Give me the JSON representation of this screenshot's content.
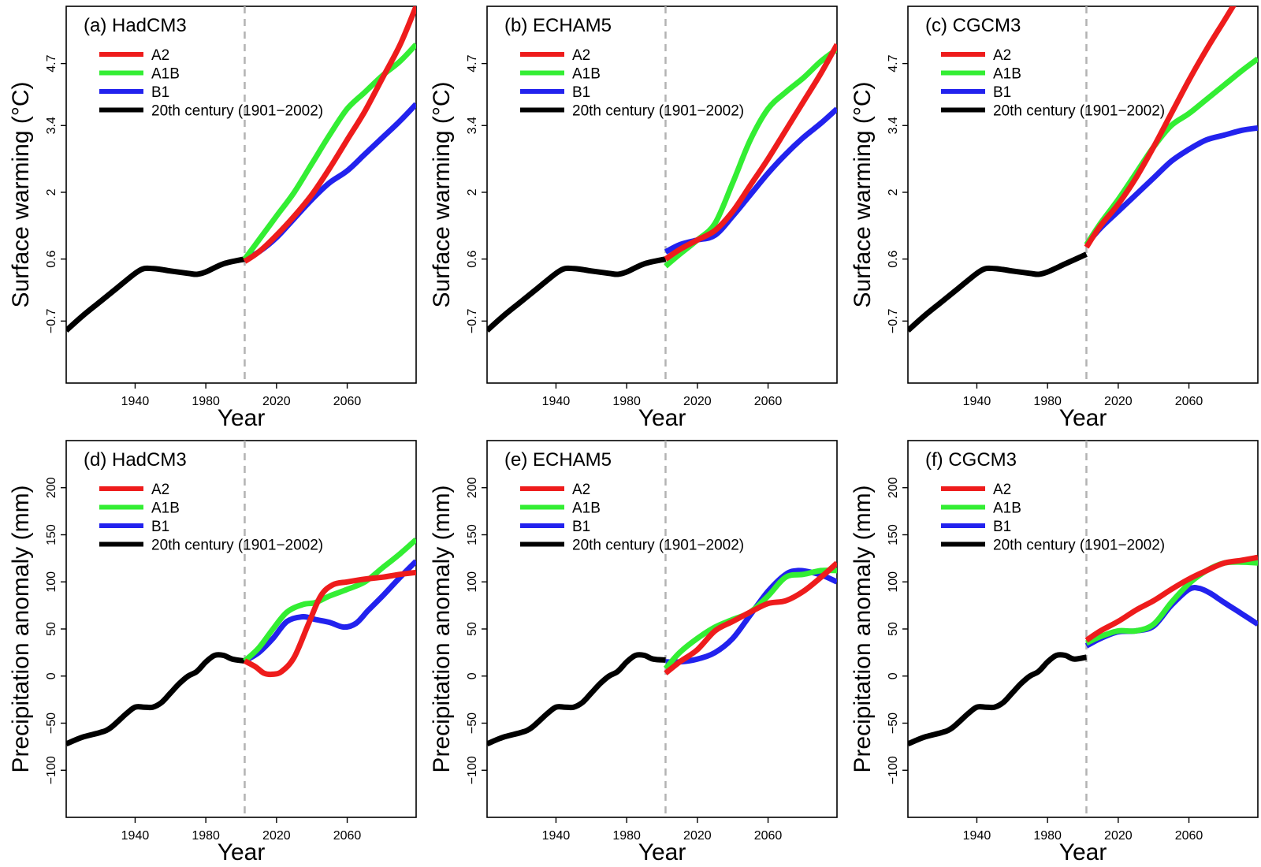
{
  "colors": {
    "A2": "#ee1c1c",
    "A1B": "#33ee33",
    "B1": "#2222ee",
    "20th": "#000000",
    "divider": "#b3b3b3"
  },
  "chart_data": [
    {
      "type": "line",
      "title": "(a) HadCM3",
      "xlabel": "Year",
      "ylabel": "Surface warming  (°C)",
      "xlim": [
        1901,
        2099
      ],
      "ylim": [
        -2.0,
        5.9
      ],
      "xticks": [
        1940,
        1980,
        2020,
        2060
      ],
      "yticks": [
        -0.7,
        0.6,
        2,
        3.4,
        4.7
      ],
      "ytick_labels": [
        "−0.7",
        "0.6",
        "2",
        "3.4",
        "4.7"
      ],
      "divider_year": 2002,
      "legend": [
        "A2",
        "A1B",
        "B1",
        "20th century (1901−2002)"
      ],
      "legend_position": "top-left",
      "series": [
        {
          "name": "20th century (1901−2002)",
          "key": "20th",
          "x": [
            1901,
            1910,
            1920,
            1930,
            1940,
            1945,
            1950,
            1955,
            1960,
            1970,
            1975,
            1980,
            1990,
            2002
          ],
          "y": [
            -0.9,
            -0.6,
            -0.3,
            0.0,
            0.3,
            0.4,
            0.4,
            0.38,
            0.35,
            0.3,
            0.28,
            0.33,
            0.5,
            0.6
          ]
        },
        {
          "name": "A2",
          "key": "A2",
          "x": [
            2002,
            2010,
            2020,
            2030,
            2040,
            2050,
            2060,
            2070,
            2080,
            2090,
            2099
          ],
          "y": [
            0.55,
            0.75,
            1.1,
            1.5,
            1.95,
            2.5,
            3.1,
            3.7,
            4.4,
            5.1,
            5.9
          ]
        },
        {
          "name": "A1B",
          "key": "A1B",
          "x": [
            2002,
            2010,
            2020,
            2030,
            2040,
            2050,
            2060,
            2070,
            2080,
            2090,
            2099
          ],
          "y": [
            0.6,
            1.0,
            1.5,
            2.0,
            2.6,
            3.2,
            3.75,
            4.1,
            4.45,
            4.75,
            5.1
          ]
        },
        {
          "name": "B1",
          "key": "B1",
          "x": [
            2002,
            2010,
            2020,
            2030,
            2040,
            2050,
            2060,
            2070,
            2080,
            2090,
            2099
          ],
          "y": [
            0.6,
            0.75,
            1.05,
            1.45,
            1.85,
            2.2,
            2.45,
            2.8,
            3.15,
            3.5,
            3.85
          ]
        }
      ]
    },
    {
      "type": "line",
      "title": "(b) ECHAM5",
      "xlabel": "Year",
      "ylabel": "Surface warming  (°C)",
      "xlim": [
        1901,
        2099
      ],
      "ylim": [
        -2.0,
        5.9
      ],
      "xticks": [
        1940,
        1980,
        2020,
        2060
      ],
      "yticks": [
        -0.7,
        0.6,
        2,
        3.4,
        4.7
      ],
      "ytick_labels": [
        "−0.7",
        "0.6",
        "2",
        "3.4",
        "4.7"
      ],
      "divider_year": 2002,
      "legend": [
        "A2",
        "A1B",
        "B1",
        "20th century (1901−2002)"
      ],
      "legend_position": "top-left",
      "series": [
        {
          "name": "20th century (1901−2002)",
          "key": "20th",
          "x": [
            1901,
            1910,
            1920,
            1930,
            1940,
            1945,
            1950,
            1955,
            1960,
            1970,
            1975,
            1980,
            1990,
            2002
          ],
          "y": [
            -0.9,
            -0.6,
            -0.3,
            0.0,
            0.3,
            0.4,
            0.4,
            0.38,
            0.35,
            0.3,
            0.28,
            0.33,
            0.5,
            0.6
          ]
        },
        {
          "name": "A2",
          "key": "A2",
          "x": [
            2002,
            2010,
            2020,
            2030,
            2040,
            2050,
            2060,
            2070,
            2080,
            2090,
            2099
          ],
          "y": [
            0.6,
            0.8,
            1.0,
            1.2,
            1.6,
            2.15,
            2.7,
            3.3,
            3.9,
            4.5,
            5.1
          ]
        },
        {
          "name": "A1B",
          "key": "A1B",
          "x": [
            2002,
            2010,
            2020,
            2030,
            2040,
            2050,
            2060,
            2070,
            2080,
            2090,
            2099
          ],
          "y": [
            0.45,
            0.7,
            1.0,
            1.35,
            2.2,
            3.1,
            3.75,
            4.1,
            4.4,
            4.75,
            5.0
          ]
        },
        {
          "name": "B1",
          "key": "B1",
          "x": [
            2002,
            2010,
            2020,
            2030,
            2040,
            2050,
            2060,
            2070,
            2080,
            2090,
            2099
          ],
          "y": [
            0.75,
            0.9,
            1.0,
            1.1,
            1.5,
            1.95,
            2.4,
            2.8,
            3.15,
            3.45,
            3.75
          ]
        }
      ]
    },
    {
      "type": "line",
      "title": "(c) CGCM3",
      "xlabel": "Year",
      "ylabel": "Surface warming  (°C)",
      "xlim": [
        1901,
        2099
      ],
      "ylim": [
        -2.0,
        5.9
      ],
      "xticks": [
        1940,
        1980,
        2020,
        2060
      ],
      "yticks": [
        -0.7,
        0.6,
        2,
        3.4,
        4.7
      ],
      "ytick_labels": [
        "−0.7",
        "0.6",
        "2",
        "3.4",
        "4.7"
      ],
      "divider_year": 2002,
      "legend": [
        "A2",
        "A1B",
        "B1",
        "20th century (1901−2002)"
      ],
      "legend_position": "top-left",
      "series": [
        {
          "name": "20th century (1901−2002)",
          "key": "20th",
          "x": [
            1901,
            1910,
            1920,
            1930,
            1940,
            1945,
            1950,
            1955,
            1960,
            1970,
            1975,
            1980,
            1990,
            2002
          ],
          "y": [
            -0.9,
            -0.6,
            -0.3,
            0.0,
            0.3,
            0.4,
            0.4,
            0.38,
            0.35,
            0.3,
            0.28,
            0.33,
            0.5,
            0.7
          ]
        },
        {
          "name": "A2",
          "key": "A2",
          "x": [
            2002,
            2010,
            2020,
            2030,
            2040,
            2050,
            2060,
            2070,
            2080,
            2090,
            2099
          ],
          "y": [
            0.85,
            1.3,
            1.75,
            2.3,
            2.95,
            3.65,
            4.35,
            5.0,
            5.6,
            6.2,
            6.7
          ]
        },
        {
          "name": "A1B",
          "key": "A1B",
          "x": [
            2002,
            2010,
            2020,
            2030,
            2040,
            2050,
            2060,
            2070,
            2080,
            2090,
            2099
          ],
          "y": [
            0.9,
            1.35,
            1.85,
            2.4,
            2.95,
            3.4,
            3.65,
            3.95,
            4.25,
            4.55,
            4.8
          ]
        },
        {
          "name": "B1",
          "key": "B1",
          "x": [
            2002,
            2010,
            2020,
            2030,
            2040,
            2050,
            2060,
            2070,
            2080,
            2090,
            2099
          ],
          "y": [
            0.9,
            1.25,
            1.6,
            1.95,
            2.3,
            2.65,
            2.9,
            3.1,
            3.2,
            3.3,
            3.35
          ]
        }
      ]
    },
    {
      "type": "line",
      "title": "(d) HadCM3",
      "xlabel": "Year",
      "ylabel": "Precipitation anomaly (mm)",
      "xlim": [
        1901,
        2099
      ],
      "ylim": [
        -150,
        250
      ],
      "xticks": [
        1940,
        1980,
        2020,
        2060
      ],
      "yticks": [
        -100,
        -50,
        0,
        50,
        100,
        150,
        200
      ],
      "ytick_labels": [
        "−100",
        "−50",
        "0",
        "50",
        "100",
        "150",
        "200"
      ],
      "divider_year": 2002,
      "legend": [
        "A2",
        "A1B",
        "B1",
        "20th century (1901−2002)"
      ],
      "legend_position": "top-left",
      "series": [
        {
          "name": "20th century (1901−2002)",
          "key": "20th",
          "x": [
            1901,
            1910,
            1920,
            1926,
            1935,
            1940,
            1945,
            1950,
            1955,
            1960,
            1965,
            1970,
            1975,
            1980,
            1985,
            1990,
            1995,
            2002
          ],
          "y": [
            -72,
            -65,
            -60,
            -55,
            -40,
            -33,
            -33,
            -33,
            -28,
            -18,
            -8,
            0,
            5,
            15,
            22,
            22,
            18,
            16
          ]
        },
        {
          "name": "A2",
          "key": "A2",
          "x": [
            2002,
            2008,
            2013,
            2018,
            2023,
            2030,
            2038,
            2045,
            2052,
            2060,
            2070,
            2080,
            2090,
            2099
          ],
          "y": [
            16,
            10,
            3,
            2,
            5,
            20,
            55,
            85,
            97,
            100,
            103,
            105,
            108,
            110
          ]
        },
        {
          "name": "A1B",
          "key": "A1B",
          "x": [
            2002,
            2010,
            2018,
            2026,
            2035,
            2042,
            2050,
            2060,
            2070,
            2080,
            2090,
            2099
          ],
          "y": [
            16,
            30,
            50,
            68,
            76,
            78,
            85,
            92,
            100,
            115,
            130,
            145
          ]
        },
        {
          "name": "B1",
          "key": "B1",
          "x": [
            2002,
            2010,
            2018,
            2026,
            2035,
            2042,
            2050,
            2058,
            2065,
            2072,
            2080,
            2090,
            2099
          ],
          "y": [
            16,
            25,
            40,
            58,
            63,
            60,
            57,
            52,
            56,
            70,
            85,
            105,
            122
          ]
        }
      ]
    },
    {
      "type": "line",
      "title": "(e) ECHAM5",
      "xlabel": "Year",
      "ylabel": "Precipitation anomaly (mm)",
      "xlim": [
        1901,
        2099
      ],
      "ylim": [
        -150,
        250
      ],
      "xticks": [
        1940,
        1980,
        2020,
        2060
      ],
      "yticks": [
        -100,
        -50,
        0,
        50,
        100,
        150,
        200
      ],
      "ytick_labels": [
        "−100",
        "−50",
        "0",
        "50",
        "100",
        "150",
        "200"
      ],
      "divider_year": 2002,
      "legend": [
        "A2",
        "A1B",
        "B1",
        "20th century (1901−2002)"
      ],
      "legend_position": "top-left",
      "series": [
        {
          "name": "20th century (1901−2002)",
          "key": "20th",
          "x": [
            1901,
            1910,
            1920,
            1926,
            1935,
            1940,
            1945,
            1950,
            1955,
            1960,
            1965,
            1970,
            1975,
            1980,
            1985,
            1990,
            1995,
            2002
          ],
          "y": [
            -72,
            -65,
            -60,
            -55,
            -40,
            -33,
            -33,
            -33,
            -28,
            -18,
            -8,
            0,
            5,
            15,
            22,
            22,
            18,
            17
          ]
        },
        {
          "name": "A2",
          "key": "A2",
          "x": [
            2002,
            2010,
            2020,
            2030,
            2040,
            2050,
            2060,
            2070,
            2080,
            2090,
            2099
          ],
          "y": [
            3,
            15,
            28,
            48,
            58,
            68,
            77,
            80,
            90,
            105,
            120
          ]
        },
        {
          "name": "A1B",
          "key": "A1B",
          "x": [
            2002,
            2010,
            2020,
            2030,
            2040,
            2050,
            2060,
            2070,
            2080,
            2090,
            2099
          ],
          "y": [
            8,
            25,
            40,
            52,
            60,
            68,
            85,
            105,
            108,
            112,
            112
          ]
        },
        {
          "name": "B1",
          "key": "B1",
          "x": [
            2002,
            2010,
            2020,
            2030,
            2040,
            2050,
            2060,
            2070,
            2077,
            2085,
            2092,
            2099
          ],
          "y": [
            15,
            15,
            18,
            25,
            40,
            65,
            90,
            108,
            112,
            110,
            106,
            100
          ]
        }
      ]
    },
    {
      "type": "line",
      "title": "(f) CGCM3",
      "xlabel": "Year",
      "ylabel": "Precipitation anomaly (mm)",
      "xlim": [
        1901,
        2099
      ],
      "ylim": [
        -150,
        250
      ],
      "xticks": [
        1940,
        1980,
        2020,
        2060
      ],
      "yticks": [
        -100,
        -50,
        0,
        50,
        100,
        150,
        200
      ],
      "ytick_labels": [
        "−100",
        "−50",
        "0",
        "50",
        "100",
        "150",
        "200"
      ],
      "divider_year": 2002,
      "legend": [
        "A2",
        "A1B",
        "B1",
        "20th century (1901−2002)"
      ],
      "legend_position": "top-left",
      "series": [
        {
          "name": "20th century (1901−2002)",
          "key": "20th",
          "x": [
            1901,
            1910,
            1920,
            1926,
            1935,
            1940,
            1945,
            1950,
            1955,
            1960,
            1965,
            1970,
            1975,
            1980,
            1985,
            1990,
            1995,
            2002
          ],
          "y": [
            -72,
            -65,
            -60,
            -55,
            -40,
            -33,
            -33,
            -33,
            -28,
            -18,
            -8,
            0,
            5,
            15,
            22,
            22,
            18,
            20
          ]
        },
        {
          "name": "A2",
          "key": "A2",
          "x": [
            2002,
            2010,
            2020,
            2030,
            2040,
            2050,
            2060,
            2070,
            2080,
            2090,
            2099
          ],
          "y": [
            38,
            48,
            58,
            70,
            80,
            92,
            103,
            112,
            120,
            123,
            126
          ]
        },
        {
          "name": "A1B",
          "key": "A1B",
          "x": [
            2002,
            2010,
            2020,
            2030,
            2040,
            2050,
            2060,
            2070,
            2080,
            2090,
            2099
          ],
          "y": [
            35,
            42,
            48,
            48,
            55,
            78,
            98,
            112,
            120,
            121,
            120
          ]
        },
        {
          "name": "B1",
          "key": "B1",
          "x": [
            2002,
            2010,
            2020,
            2030,
            2040,
            2050,
            2060,
            2066,
            2072,
            2080,
            2090,
            2099
          ],
          "y": [
            32,
            40,
            47,
            48,
            53,
            75,
            92,
            93,
            88,
            78,
            66,
            55
          ]
        }
      ]
    }
  ]
}
